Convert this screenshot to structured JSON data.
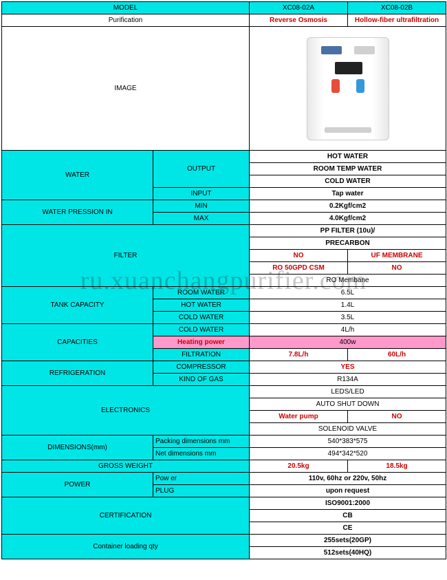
{
  "colors": {
    "cyan": "#00e6e6",
    "pink": "#ff99cc",
    "red": "#cc0000"
  },
  "header": {
    "model": "MODEL",
    "modelA": "XC08-02A",
    "modelB": "XC08-02B",
    "purification": "Purification",
    "purA": "Reverse Osmosis",
    "purB": "Hollow-fiber ultrafiltration",
    "image": "IMAGE"
  },
  "water": {
    "label": "WATER",
    "output": "OUTPUT",
    "hot": "HOT  WATER",
    "room": "ROOM TEMP WATER",
    "cold": "COLD WATER",
    "input": "INPUT",
    "tap": "Tap water"
  },
  "pressure": {
    "label": "WATER PRESSION IN",
    "min": "MIN",
    "minv": "0.2Kgf/cm2",
    "max": "MAX",
    "maxv": "4.0Kgf/cm2"
  },
  "filter": {
    "label": "FILTER",
    "pp": "PP FILTER (10u)/",
    "pre": "PRECARBON",
    "noA": "NO",
    "uf": "UF MEMBRANE",
    "ro50": "RO 50GPD  CSM",
    "noB": "NO",
    "romem": "RO Membane"
  },
  "tank": {
    "label": "TANK CAPACITY",
    "roomwater": "ROOM WATER",
    "roomv": "6.5L",
    "hot": "HOT  WATER",
    "hotv": "1.4L",
    "cold": "COLD WATER",
    "coldv": "3.5L"
  },
  "cap": {
    "label": "CAPACITIES",
    "cold": "COLD WATER",
    "coldv": "4L/h",
    "heat": "Heating power",
    "heatv": "400w",
    "filtration": "FILTRATION",
    "fA": "7.8L/h",
    "fB": "60L/h"
  },
  "refr": {
    "label": "REFRIGERATION",
    "comp": "COMPRESSOR",
    "compv": "YES",
    "gas": "KIND OF GAS",
    "gasv": "R134A"
  },
  "elec": {
    "label": "ELECTRONICS",
    "leds": "LEDS/LED",
    "auto": "AUTO SHUT DOWN",
    "pump": "Water pump",
    "pumpv": "NO",
    "sol": "SOLENOID VALVE"
  },
  "dim": {
    "label": "DIMENSIONS(mm)",
    "pack": "Packing dimensions mm",
    "packv": "540*383*575",
    "net": "Net dimensions mm",
    "netv": "494*342*520"
  },
  "weight": {
    "label": "GROSS WEIGHT",
    "a": "20.5kg",
    "b": "18.5kg"
  },
  "power": {
    "label": "POWER",
    "power": "Pow er",
    "powerv": "110v, 60hz or 220v, 50hz",
    "plug": "PLUG",
    "plugv": "upon request"
  },
  "cert": {
    "label": "CERTIFICATION",
    "iso": "ISO9001:2000",
    "cb": "CB",
    "ce": "CE"
  },
  "container": {
    "label": "Container loading qty",
    "v1": "255sets(20GP)",
    "v2": "512sets(40HQ)"
  },
  "watermark": "ru.xuanchangpurifier.com"
}
